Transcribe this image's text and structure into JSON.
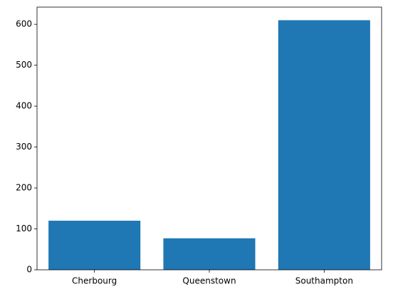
{
  "chart_data": {
    "type": "bar",
    "categories": [
      "Cherbourg",
      "Queenstown",
      "Southampton"
    ],
    "values": [
      120,
      77,
      610
    ],
    "color": "#1f77b4",
    "ylim": [
      0,
      642
    ],
    "yticks": [
      0,
      100,
      200,
      300,
      400,
      500,
      600
    ],
    "grid": false
  }
}
